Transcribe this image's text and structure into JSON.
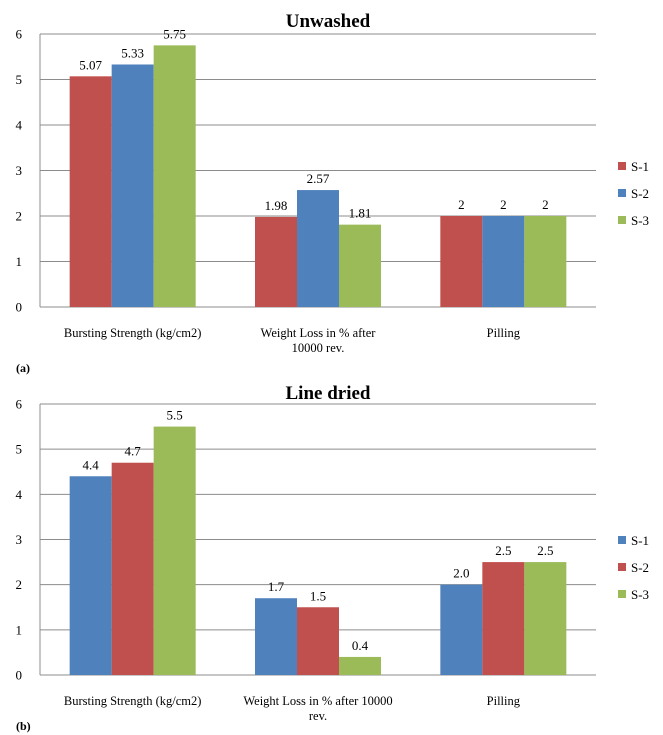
{
  "chart_data": [
    {
      "type": "bar",
      "panel_label": "(a)",
      "title": "Unwashed",
      "categories": [
        "Bursting Strength (kg/cm2)",
        "Weight Loss in % after 10000 rev.",
        "Pilling"
      ],
      "category_lines": [
        [
          "Bursting Strength (kg/cm2)"
        ],
        [
          "Weight Loss in % after",
          "10000 rev."
        ],
        [
          "Pilling"
        ]
      ],
      "series": [
        {
          "name": "S-1",
          "color": "#c0504d",
          "values": [
            5.07,
            1.98,
            2
          ],
          "labels": [
            "5.07",
            "1.98",
            "2"
          ]
        },
        {
          "name": "S-2",
          "color": "#4f81bd",
          "values": [
            5.33,
            2.57,
            2
          ],
          "labels": [
            "5.33",
            "2.57",
            "2"
          ]
        },
        {
          "name": "S-3",
          "color": "#9bbb59",
          "values": [
            5.75,
            1.81,
            2
          ],
          "labels": [
            "5.75",
            "1.81",
            "2"
          ]
        }
      ],
      "ylim": [
        0,
        6
      ],
      "yticks": [
        "0",
        "1",
        "2",
        "3",
        "4",
        "5",
        "6"
      ],
      "grid": true,
      "legend": "right"
    },
    {
      "type": "bar",
      "panel_label": "(b)",
      "title": "Line dried",
      "categories": [
        "Bursting Strength (kg/cm2)",
        "Weight Loss in % after 10000 rev.",
        "Pilling"
      ],
      "category_lines": [
        [
          "Bursting Strength (kg/cm2)"
        ],
        [
          "Weight Loss in % after 10000",
          "rev."
        ],
        [
          "Pilling"
        ]
      ],
      "series": [
        {
          "name": "S-1",
          "color": "#4f81bd",
          "values": [
            4.4,
            1.7,
            2.0
          ],
          "labels": [
            "4.4",
            "1.7",
            "2.0"
          ]
        },
        {
          "name": "S-2",
          "color": "#c0504d",
          "values": [
            4.7,
            1.5,
            2.5
          ],
          "labels": [
            "4.7",
            "1.5",
            "2.5"
          ]
        },
        {
          "name": "S-3",
          "color": "#9bbb59",
          "values": [
            5.5,
            0.4,
            2.5
          ],
          "labels": [
            "5.5",
            "0.4",
            "2.5"
          ]
        }
      ],
      "ylim": [
        0,
        6
      ],
      "yticks": [
        "0",
        "1",
        "2",
        "3",
        "4",
        "5",
        "6"
      ],
      "grid": true,
      "legend": "right"
    }
  ]
}
